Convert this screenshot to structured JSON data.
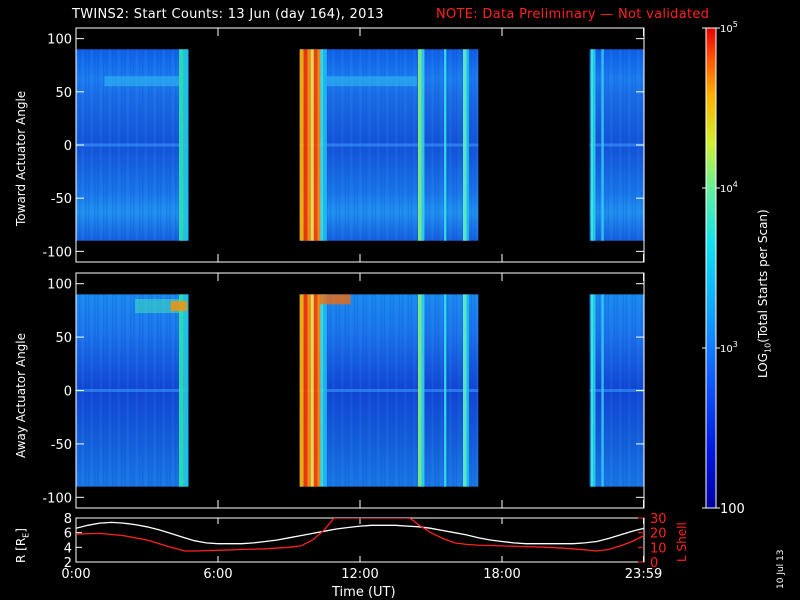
{
  "title": "TWINS2: Start Counts: 13 Jun (day 164), 2013",
  "note": "NOTE: Data Preliminary — Not validated",
  "timestamp": "10 Jul 13",
  "colors": {
    "background": "#000000",
    "text": "#ffffff",
    "note": "#ff2020",
    "r_line": "#ffffff",
    "lshell_line": "#ff2020"
  },
  "colorbar": {
    "label": "LOG10(Total Starts per Scan)",
    "label_prefix": "LOG",
    "label_sub": "10",
    "label_suffix": "(Total Starts per Scan)",
    "scale": "log",
    "range": [
      100,
      100000
    ],
    "ticks": [
      {
        "value": 100,
        "label": "100"
      },
      {
        "value": 1000,
        "label": "10",
        "sup": "3"
      },
      {
        "value": 10000,
        "label": "10",
        "sup": "4"
      },
      {
        "value": 100000,
        "label": "10",
        "sup": "5"
      }
    ]
  },
  "chart_data": [
    {
      "type": "heatmap",
      "ylabel": "Toward Actuator Angle",
      "xlim": [
        0,
        24
      ],
      "ylim": [
        -110,
        110
      ],
      "yticks": [
        "100",
        "50",
        "0",
        "-50",
        "-100"
      ],
      "ytick_values": [
        100,
        50,
        0,
        -50,
        -100
      ],
      "data_angle_range": [
        -90,
        90
      ],
      "data_intervals_hours": [
        [
          0.0,
          4.75
        ],
        [
          9.45,
          17.0
        ],
        [
          21.7,
          24.0
        ]
      ]
    },
    {
      "type": "heatmap",
      "ylabel": "Away Actuator Angle",
      "xlim": [
        0,
        24
      ],
      "ylim": [
        -110,
        110
      ],
      "yticks": [
        "100",
        "50",
        "0",
        "-50",
        "-100"
      ],
      "ytick_values": [
        100,
        50,
        0,
        -50,
        -100
      ],
      "data_angle_range": [
        -90,
        90
      ],
      "data_intervals_hours": [
        [
          0.0,
          4.75
        ],
        [
          9.45,
          17.0
        ],
        [
          21.7,
          24.0
        ]
      ]
    },
    {
      "type": "line",
      "ylabel_left": "R [RE]",
      "ylabel_left_prefix": "R [R",
      "ylabel_left_sub": "E",
      "ylabel_left_suffix": "]",
      "ylabel_right": "L Shell",
      "xlabel": "Time (UT)",
      "xlim": [
        0,
        24
      ],
      "xticks": [
        "0:00",
        "6:00",
        "12:00",
        "18:00",
        "23:59"
      ],
      "xtick_values": [
        0,
        6,
        12,
        18,
        23.98
      ],
      "ylim_left": [
        2,
        8
      ],
      "yticks_left": [
        "2",
        "4",
        "6",
        "8"
      ],
      "ylim_right": [
        0,
        30
      ],
      "yticks_right": [
        "0",
        "10",
        "20",
        "30"
      ],
      "series": [
        {
          "name": "R [RE]",
          "axis": "left",
          "x": [
            0,
            0.5,
            1,
            1.5,
            2,
            2.5,
            3,
            3.5,
            4,
            4.5,
            5,
            5.5,
            6,
            6.5,
            7,
            7.5,
            8,
            8.5,
            9,
            9.5,
            10,
            10.5,
            11,
            11.5,
            12,
            12.5,
            13,
            13.5,
            14,
            14.5,
            15,
            15.5,
            16,
            16.5,
            17,
            17.5,
            18,
            18.5,
            19,
            19.5,
            20,
            20.5,
            21,
            21.5,
            22,
            22.5,
            23,
            23.5,
            24
          ],
          "y": [
            6.6,
            7.0,
            7.3,
            7.4,
            7.3,
            7.1,
            6.8,
            6.4,
            5.9,
            5.4,
            4.9,
            4.6,
            4.5,
            4.5,
            4.5,
            4.6,
            4.8,
            5.0,
            5.3,
            5.6,
            5.9,
            6.2,
            6.5,
            6.7,
            6.9,
            7.0,
            7.0,
            7.0,
            6.9,
            6.8,
            6.6,
            6.3,
            6.0,
            5.7,
            5.3,
            5.0,
            4.8,
            4.6,
            4.5,
            4.5,
            4.5,
            4.5,
            4.5,
            4.6,
            4.8,
            5.2,
            5.7,
            6.2,
            6.6
          ]
        },
        {
          "name": "L Shell",
          "axis": "right",
          "x": [
            0,
            1,
            2,
            3,
            4,
            4.6,
            5,
            6,
            7,
            8,
            9,
            9.5,
            10,
            10.5,
            10.9,
            14.1,
            14.5,
            15,
            15.5,
            16,
            16.5,
            17,
            18,
            19,
            20,
            21,
            22,
            22.5,
            23,
            23.5,
            24
          ],
          "y": [
            19,
            19.5,
            18,
            15,
            10,
            7.5,
            7.5,
            8,
            8.5,
            9,
            10,
            11,
            15,
            22,
            30,
            30,
            25,
            20,
            16,
            13,
            12,
            11.5,
            11,
            10.5,
            10,
            9,
            7.5,
            8.5,
            11,
            14,
            18
          ]
        }
      ]
    }
  ]
}
